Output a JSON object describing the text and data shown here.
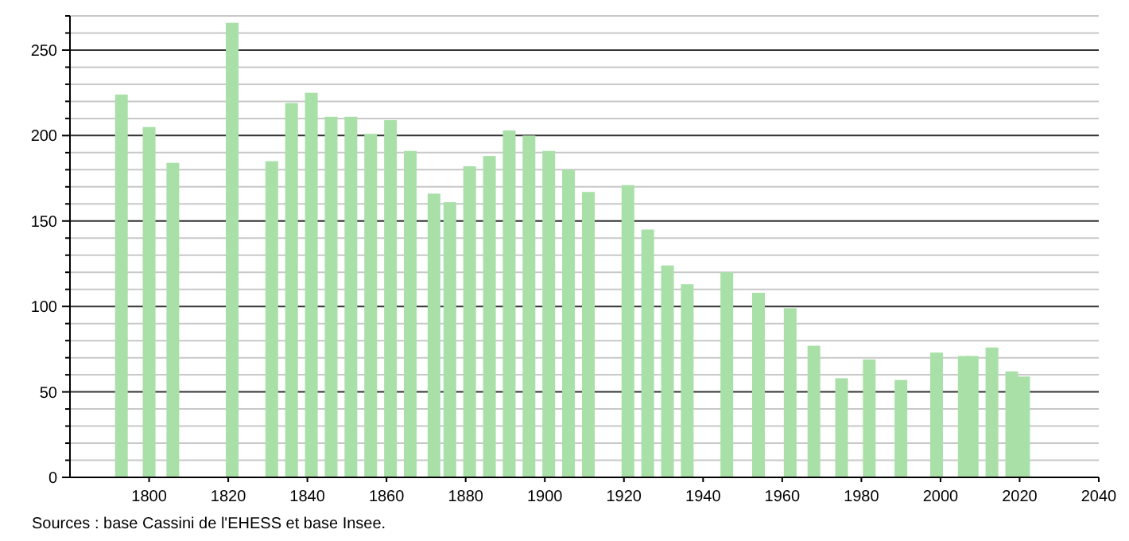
{
  "chart_data": {
    "type": "bar",
    "x": [
      1793,
      1800,
      1806,
      1821,
      1831,
      1836,
      1841,
      1846,
      1851,
      1856,
      1861,
      1866,
      1872,
      1876,
      1881,
      1886,
      1891,
      1896,
      1901,
      1906,
      1911,
      1921,
      1926,
      1931,
      1936,
      1946,
      1954,
      1962,
      1968,
      1975,
      1982,
      1990,
      1999,
      2006,
      2008,
      2013,
      2018,
      2021
    ],
    "values": [
      224,
      205,
      184,
      266,
      185,
      219,
      225,
      211,
      211,
      201,
      209,
      191,
      166,
      161,
      182,
      188,
      203,
      200,
      191,
      180,
      167,
      171,
      145,
      124,
      113,
      120,
      108,
      99,
      77,
      58,
      69,
      57,
      73,
      71,
      71,
      76,
      62,
      59
    ],
    "color": "#a8e0a8",
    "xlim": [
      1780,
      2040
    ],
    "xticks": [
      1800,
      1820,
      1840,
      1860,
      1880,
      1900,
      1920,
      1940,
      1960,
      1980,
      2000,
      2020,
      2040
    ],
    "ylim": [
      0,
      270
    ],
    "yticks": [
      0,
      {
        "value": 10,
        "label": null
      },
      {
        "value": 20,
        "label": null
      },
      {
        "value": 30,
        "label": null
      },
      {
        "value": 40,
        "label": null
      },
      50,
      {
        "value": 60,
        "label": null
      },
      {
        "value": 70,
        "label": null
      },
      {
        "value": 80,
        "label": null
      },
      {
        "value": 90,
        "label": null
      },
      100,
      {
        "value": 110,
        "label": null
      },
      {
        "value": 120,
        "label": null
      },
      {
        "value": 130,
        "label": null
      },
      {
        "value": 140,
        "label": null
      },
      150,
      {
        "value": 160,
        "label": null
      },
      {
        "value": 170,
        "label": null
      },
      {
        "value": 180,
        "label": null
      },
      {
        "value": 190,
        "label": null
      },
      200,
      {
        "value": 210,
        "label": null
      },
      {
        "value": 220,
        "label": null
      },
      {
        "value": 230,
        "label": null
      },
      {
        "value": 240,
        "label": null
      },
      250,
      {
        "value": 260,
        "label": null
      },
      {
        "value": 270,
        "label": null
      }
    ],
    "grid": "y",
    "annotations": [
      "Sources : base Cassini de l'EHESS et base Insee."
    ]
  }
}
